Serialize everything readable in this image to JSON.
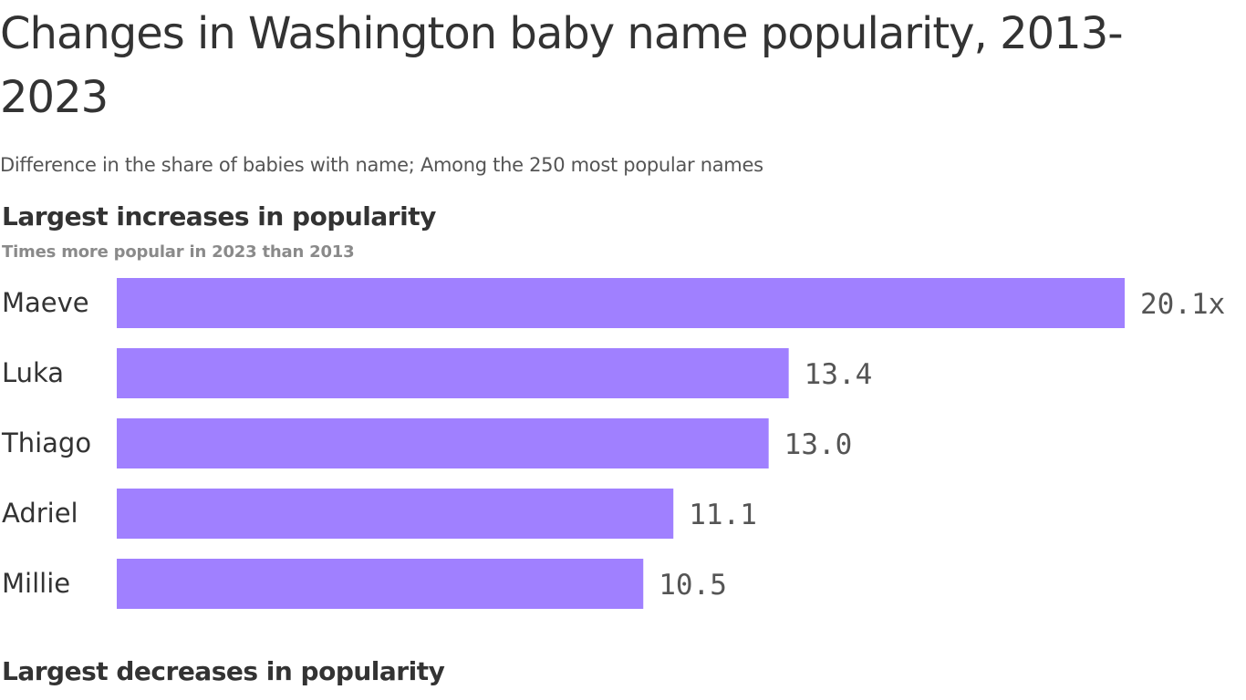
{
  "title": "Changes in Washington baby name popularity, 2013-2023",
  "subtitle": "Difference in the share of babies with name; Among the 250 most popular names",
  "sections": {
    "increase": {
      "title": "Largest increases in popularity",
      "subtitle": "Times more popular in 2023 than 2013"
    },
    "decrease": {
      "title": "Largest decreases in popularity"
    }
  },
  "chart_data": {
    "type": "bar",
    "orientation": "horizontal",
    "title": "Largest increases in popularity",
    "subtitle": "Times more popular in 2023 than 2013",
    "categories": [
      "Maeve",
      "Luka",
      "Thiago",
      "Adriel",
      "Millie"
    ],
    "values": [
      20.1,
      13.4,
      13.0,
      11.1,
      10.5
    ],
    "value_labels": [
      "20.1x",
      "13.4",
      "13.0",
      "11.1",
      "10.5"
    ],
    "xlim": [
      0,
      20.1
    ],
    "grid": false,
    "bar_color": "#a080ff",
    "label_color": "#333333",
    "value_color": "#555555"
  }
}
